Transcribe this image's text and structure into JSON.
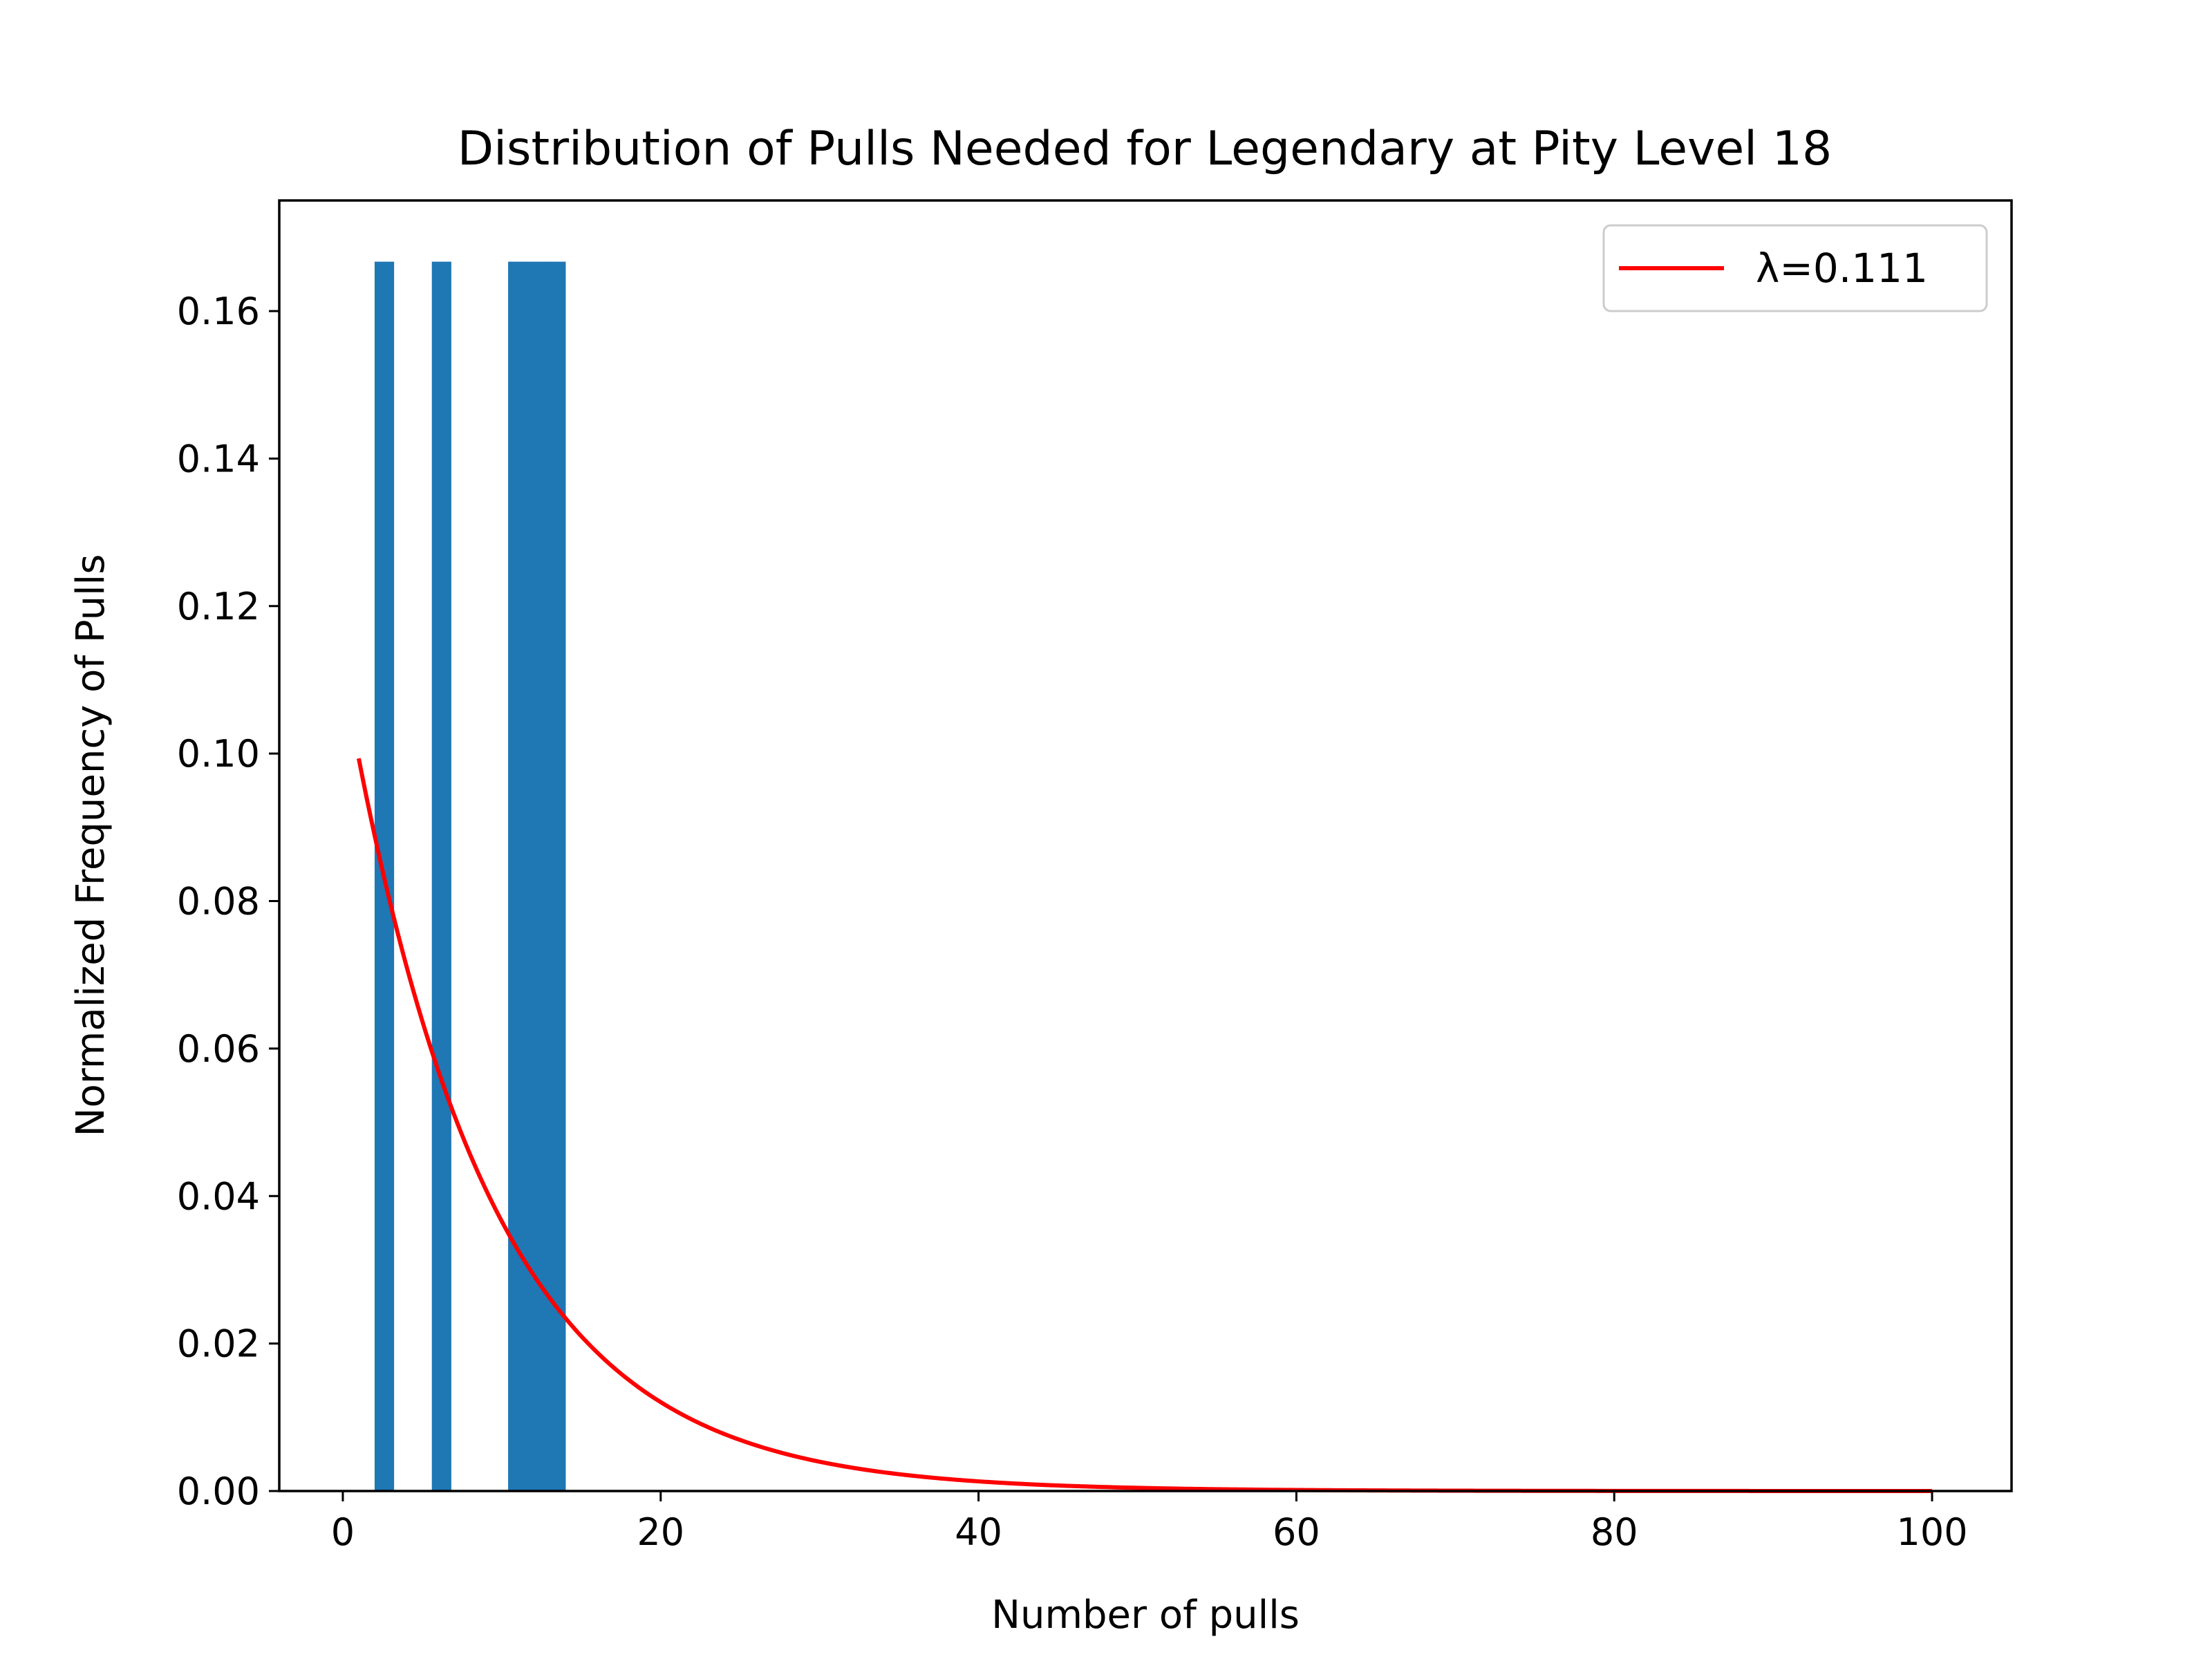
{
  "chart_data": {
    "type": "bar",
    "title": "Distribution of Pulls Needed for Legendary at Pity Level 18",
    "xlabel": "Number of pulls",
    "ylabel": "Normalized Frequency of Pulls",
    "xlim": [
      -4,
      105
    ],
    "ylim": [
      0,
      0.175
    ],
    "xticks": [
      0,
      20,
      40,
      60,
      80,
      100
    ],
    "xtick_labels": [
      "0",
      "20",
      "40",
      "60",
      "80",
      "100"
    ],
    "yticks": [
      0,
      0.02,
      0.04,
      0.06,
      0.08,
      0.1,
      0.12,
      0.14,
      0.16
    ],
    "ytick_labels": [
      "0.00",
      "0.02",
      "0.04",
      "0.06",
      "0.08",
      "0.10",
      "0.12",
      "0.14",
      "0.16"
    ],
    "bars": {
      "color": "#1f77b4",
      "bins": [
        {
          "x0": 2.0,
          "x1": 3.2,
          "value": 0.1667
        },
        {
          "x0": 5.6,
          "x1": 6.8,
          "value": 0.1667
        },
        {
          "x0": 10.4,
          "x1": 11.6,
          "value": 0.1667
        },
        {
          "x0": 11.6,
          "x1": 12.8,
          "value": 0.1667
        },
        {
          "x0": 12.8,
          "x1": 14.0,
          "value": 0.1667
        }
      ]
    },
    "series": [
      {
        "name": "λ=0.111",
        "type": "line",
        "color": "#ff0000",
        "function": "exponential_pdf",
        "lambda": 0.111,
        "x_range": [
          1,
          100
        ]
      }
    ],
    "legend": {
      "placement": "top-right",
      "entries": [
        "λ=0.111"
      ]
    },
    "grid": false
  }
}
